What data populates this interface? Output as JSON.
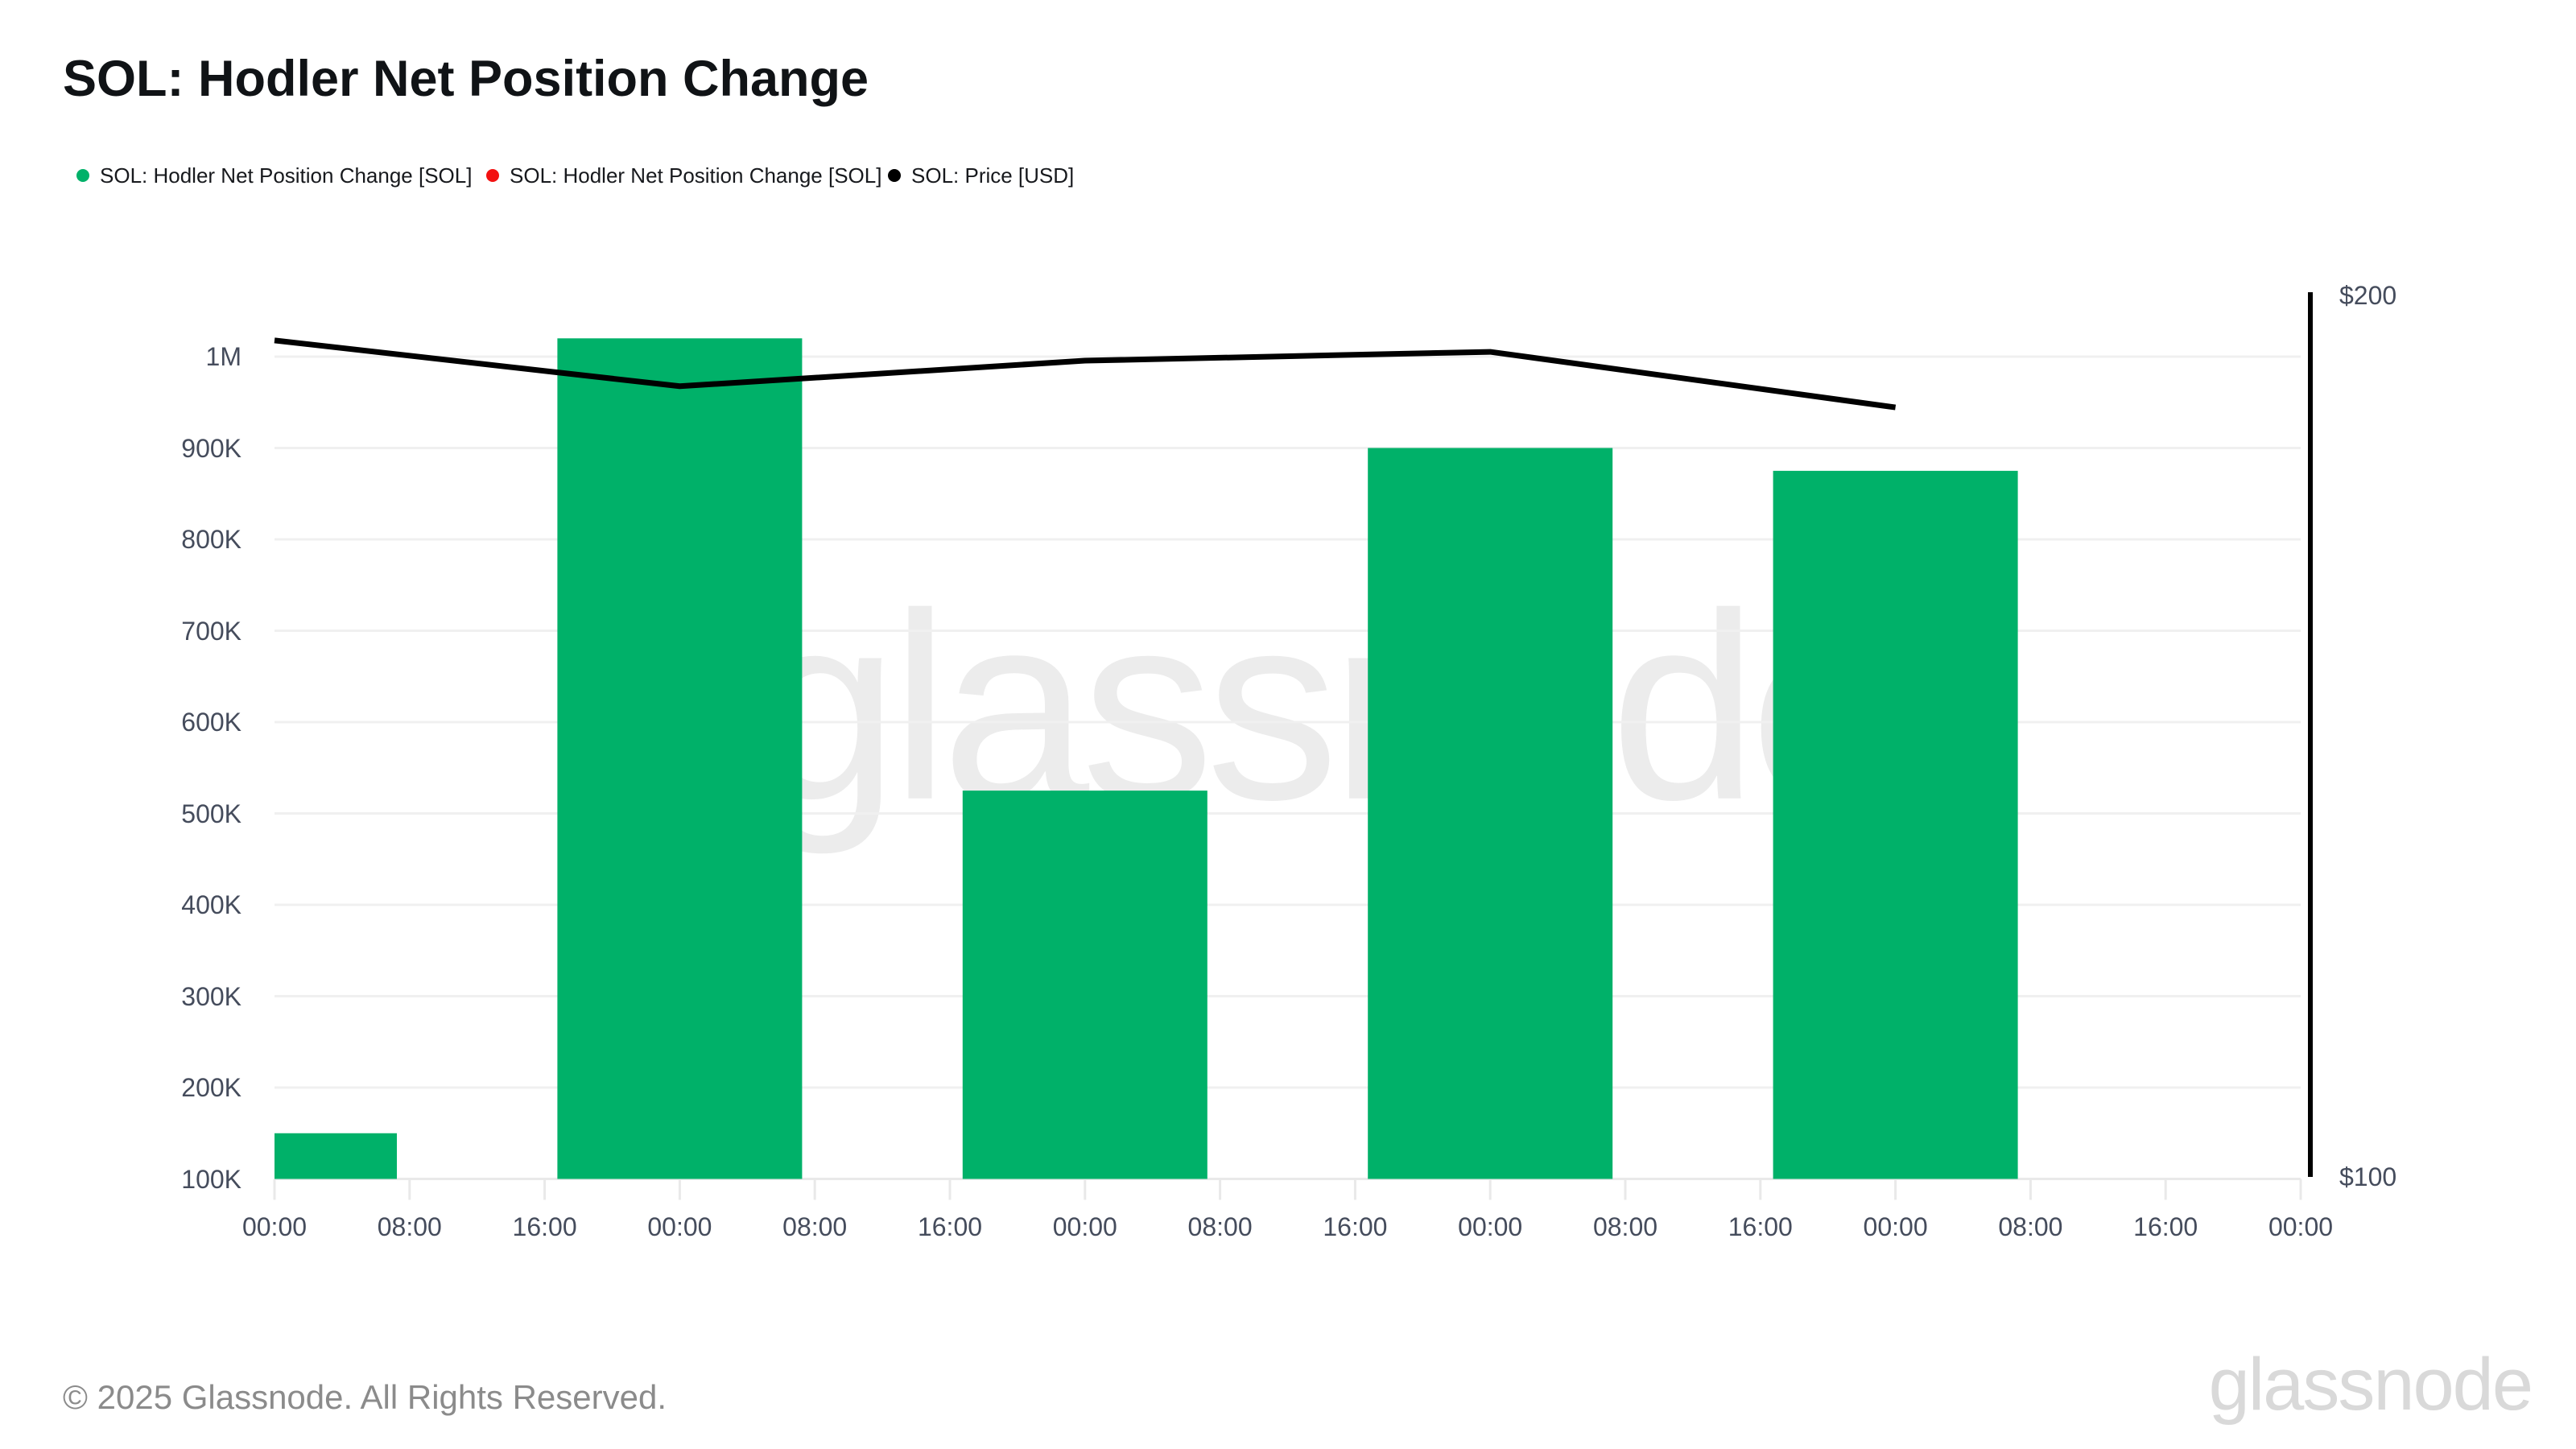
{
  "title": "SOL: Hodler Net Position Change",
  "legend": [
    {
      "label": "SOL: Hodler Net Position Change [SOL]",
      "color": "#00b169"
    },
    {
      "label": "SOL: Hodler Net Position Change [SOL]",
      "color": "#f31111"
    },
    {
      "label": "SOL: Price [USD]",
      "color": "#000000"
    }
  ],
  "watermark": "glassnode",
  "footer": {
    "copyright": "© 2025 Glassnode. All Rights Reserved.",
    "logo": "glassnode"
  },
  "chart_data": {
    "type": "bar+line",
    "title": "SOL: Hodler Net Position Change",
    "x_tick_labels": [
      "00:00",
      "08:00",
      "16:00",
      "00:00",
      "08:00",
      "16:00",
      "00:00",
      "08:00",
      "16:00",
      "00:00",
      "08:00",
      "16:00",
      "00:00",
      "08:00",
      "16:00",
      "00:00"
    ],
    "x_tick_interval_hours": 8,
    "grid": true,
    "legend_position": "top-left",
    "left_axis": {
      "tick_labels": [
        "1M",
        "900K",
        "800K",
        "700K",
        "600K",
        "500K",
        "400K",
        "300K",
        "200K",
        "100K"
      ],
      "tick_values": [
        1000000,
        900000,
        800000,
        700000,
        600000,
        500000,
        400000,
        300000,
        200000,
        100000
      ],
      "min": 100000,
      "max": 1000000
    },
    "right_axis": {
      "tick_labels": [
        "$200",
        "$100"
      ],
      "tick_values": [
        200,
        100
      ],
      "min": 100,
      "max": 200
    },
    "series": [
      {
        "name": "SOL: Hodler Net Position Change [SOL]",
        "type": "bar",
        "color": "#00b169",
        "axis": "left",
        "tick_indices": [
          0,
          3,
          6,
          9,
          12
        ],
        "values": [
          150000,
          1020000,
          525000,
          900000,
          875000
        ]
      },
      {
        "name": "SOL: Hodler Net Position Change [SOL]",
        "type": "bar",
        "color": "#f31111",
        "axis": "left",
        "tick_indices": [],
        "values": []
      },
      {
        "name": "SOL: Price [USD]",
        "type": "line",
        "color": "#000000",
        "axis": "right",
        "tick_indices": [
          0,
          3,
          6,
          9,
          12
        ],
        "values": [
          194.9,
          189.7,
          192.6,
          193.6,
          187.3
        ]
      }
    ]
  }
}
